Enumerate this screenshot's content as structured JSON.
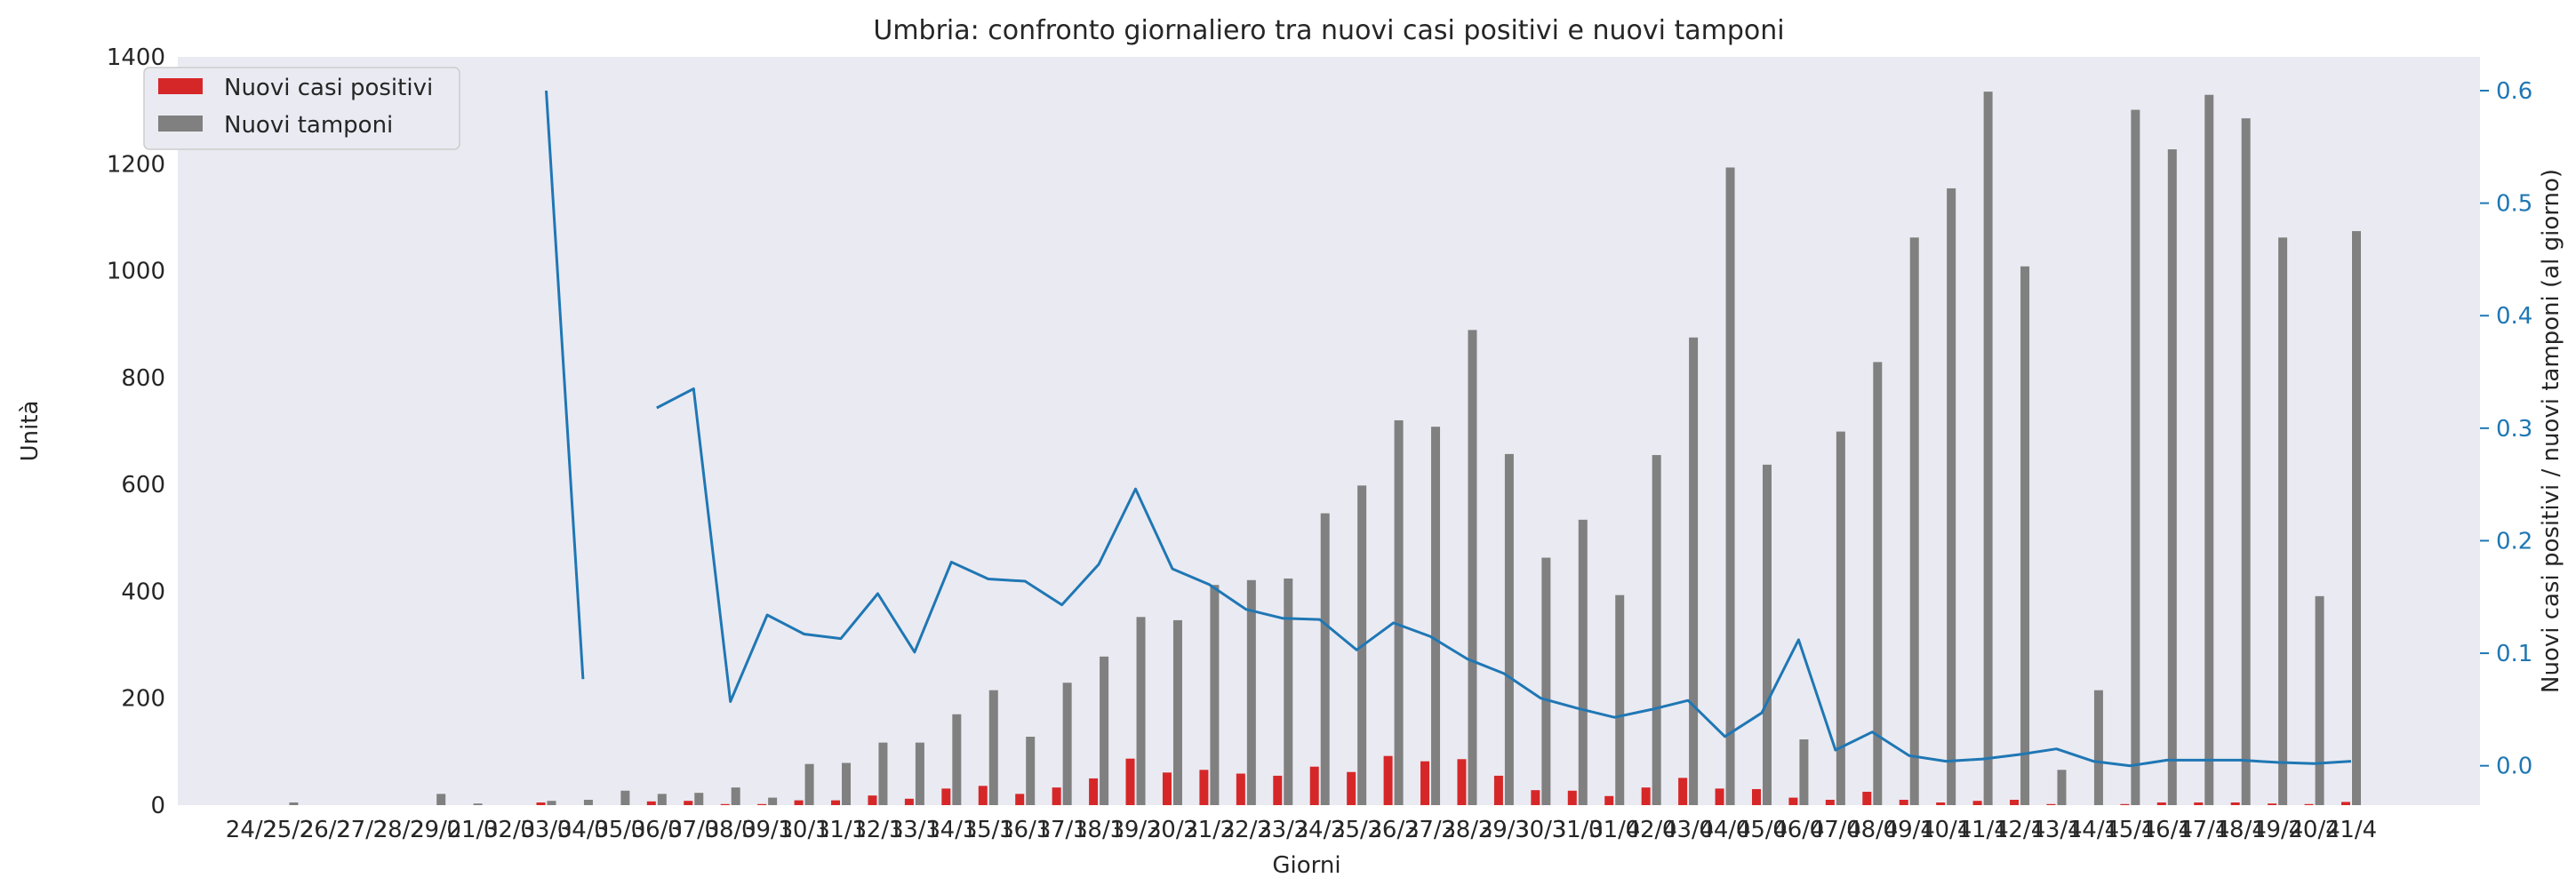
{
  "chart_data": {
    "type": "bar",
    "title": "Umbria: confronto giornaliero tra nuovi casi positivi e nuovi tamponi",
    "xlabel": "Giorni",
    "ylabel": "Unità",
    "ylabel_right": "Nuovi casi positivi / nuovi tamponi (al giorno)",
    "ylim": [
      0,
      1400
    ],
    "ylim_right": [
      -0.035,
      0.63
    ],
    "yticks": [
      0,
      200,
      400,
      600,
      800,
      1000,
      1200,
      1400
    ],
    "yticks_right": [
      0.0,
      0.1,
      0.2,
      0.3,
      0.4,
      0.5,
      0.6
    ],
    "grid": false,
    "legend_position": "top-left",
    "categories": [
      "24/2",
      "25/2",
      "26/2",
      "27/2",
      "28/2",
      "29/2",
      "01/3",
      "02/3",
      "03/3",
      "04/3",
      "05/3",
      "06/3",
      "07/3",
      "08/3",
      "09/3",
      "10/3",
      "11/3",
      "12/3",
      "13/3",
      "14/3",
      "15/3",
      "16/3",
      "17/3",
      "18/3",
      "19/3",
      "20/3",
      "21/3",
      "22/3",
      "23/3",
      "24/3",
      "25/3",
      "26/3",
      "27/3",
      "28/3",
      "29/3",
      "30/3",
      "31/3",
      "01/4",
      "02/4",
      "03/4",
      "04/4",
      "05/4",
      "06/4",
      "07/4",
      "08/4",
      "09/4",
      "10/4",
      "11/4",
      "12/4",
      "13/4",
      "14/4",
      "15/4",
      "16/4",
      "17/4",
      "18/4",
      "19/4",
      "20/4",
      "21/4"
    ],
    "series": [
      {
        "name": "Nuovi casi positivi",
        "kind": "bar",
        "axis": "left",
        "color": "#d62728",
        "values": [
          0,
          0,
          0,
          0,
          0,
          0,
          0,
          0,
          5,
          0,
          0,
          7,
          8,
          2,
          2,
          9,
          9,
          18,
          12,
          31,
          36,
          21,
          33,
          50,
          87,
          61,
          66,
          59,
          55,
          72,
          62,
          92,
          82,
          86,
          55,
          28,
          27,
          17,
          33,
          51,
          31,
          30,
          14,
          10,
          25,
          10,
          5,
          8,
          10,
          2,
          0,
          2,
          5,
          5,
          5,
          3,
          2,
          6
        ]
      },
      {
        "name": "Nuovi tamponi",
        "kind": "bar",
        "axis": "left",
        "color": "#808080",
        "values": [
          0,
          5,
          0,
          0,
          0,
          21,
          3,
          0,
          8,
          10,
          27,
          21,
          23,
          33,
          14,
          77,
          79,
          117,
          117,
          170,
          215,
          128,
          229,
          278,
          352,
          346,
          412,
          421,
          424,
          546,
          598,
          720,
          708,
          889,
          657,
          463,
          534,
          393,
          655,
          875,
          1193,
          637,
          123,
          699,
          829,
          1062,
          1154,
          1335,
          1008,
          66,
          215,
          1301,
          1227,
          1329,
          1285,
          1062,
          391,
          1074
        ]
      },
      {
        "name": "Nuovi casi positivi / nuovi tamponi (al giorno)",
        "kind": "line",
        "axis": "right",
        "color": "#1f77b4",
        "values": [
          null,
          null,
          null,
          null,
          null,
          null,
          null,
          null,
          0.6,
          0.077,
          null,
          0.318,
          0.335,
          0.057,
          0.134,
          0.117,
          0.113,
          0.153,
          0.101,
          0.181,
          0.166,
          0.164,
          0.143,
          0.179,
          0.246,
          0.175,
          0.161,
          0.139,
          0.131,
          0.13,
          0.103,
          0.127,
          0.115,
          0.095,
          0.082,
          0.06,
          0.051,
          0.043,
          0.05,
          0.058,
          0.026,
          0.047,
          0.112,
          0.014,
          0.03,
          0.009,
          0.004,
          0.006,
          0.01,
          0.015,
          0.004,
          0.0,
          0.005,
          0.005,
          0.005,
          0.003,
          0.002,
          0.004
        ]
      }
    ]
  }
}
